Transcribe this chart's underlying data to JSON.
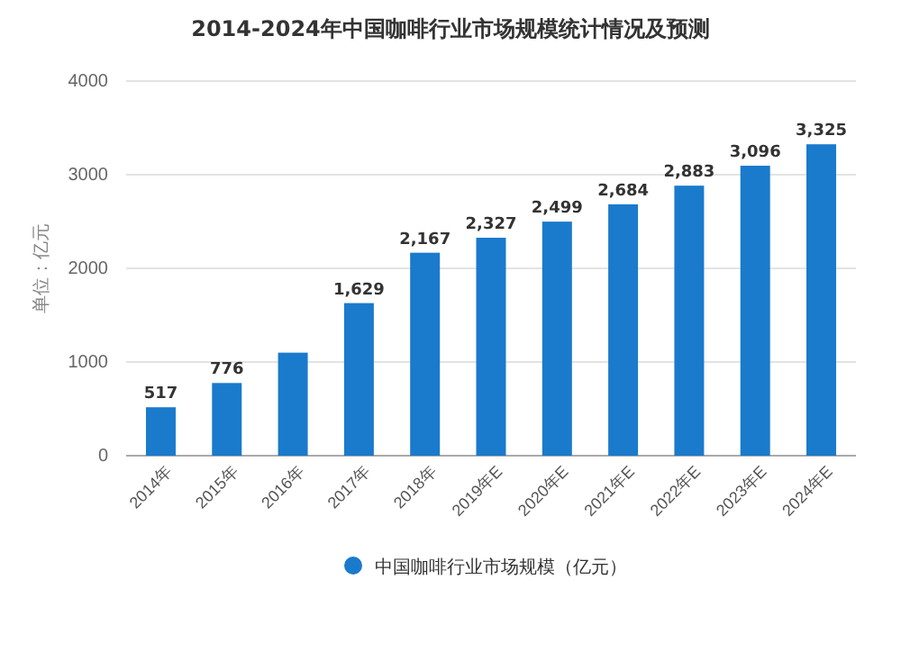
{
  "chart_data": {
    "type": "bar",
    "title": "2014-2024年中国咖啡行业市场规模统计情况及预测",
    "ylabel": "单位：亿元",
    "categories": [
      "2014年",
      "2015年",
      "2016年",
      "2017年",
      "2018年",
      "2019年E",
      "2020年E",
      "2021年E",
      "2022年E",
      "2023年E",
      "2024年E"
    ],
    "series": [
      {
        "name": "中国咖啡行业市场规模（亿元）",
        "color": "#1a7acc",
        "values": [
          517,
          776,
          1100,
          1629,
          2167,
          2327,
          2499,
          2684,
          2883,
          3096,
          3325
        ],
        "value_labels": [
          "517",
          "776",
          null,
          "1,629",
          "2,167",
          "2,327",
          "2,499",
          "2,684",
          "2,883",
          "3,096",
          "3,325"
        ]
      }
    ],
    "ylim": [
      0,
      4000
    ],
    "yticks": [
      0,
      1000,
      2000,
      3000,
      4000
    ],
    "grid": "y",
    "legend": "bottom"
  }
}
